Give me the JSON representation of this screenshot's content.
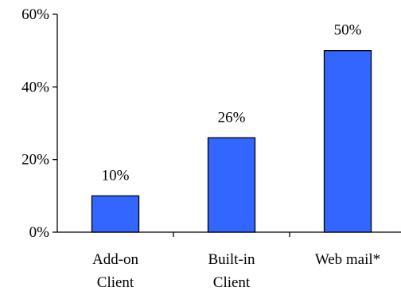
{
  "chart_data": {
    "type": "bar",
    "title": "",
    "xlabel": "",
    "ylabel": "",
    "categories": [
      [
        "Add-on",
        "Client"
      ],
      [
        "Built-in",
        "Client"
      ],
      [
        "Web mail*"
      ]
    ],
    "values": [
      10,
      26,
      50
    ],
    "data_labels": [
      "10%",
      "26%",
      "50%"
    ],
    "ylim": [
      0,
      60
    ],
    "yticks": [
      0,
      20,
      40,
      60
    ],
    "ytick_labels": [
      "0%",
      "20%",
      "40%",
      "60%"
    ],
    "bar_color": "#3366ff",
    "bar_edge_color": "#000000",
    "grid": false,
    "legend": "none"
  }
}
